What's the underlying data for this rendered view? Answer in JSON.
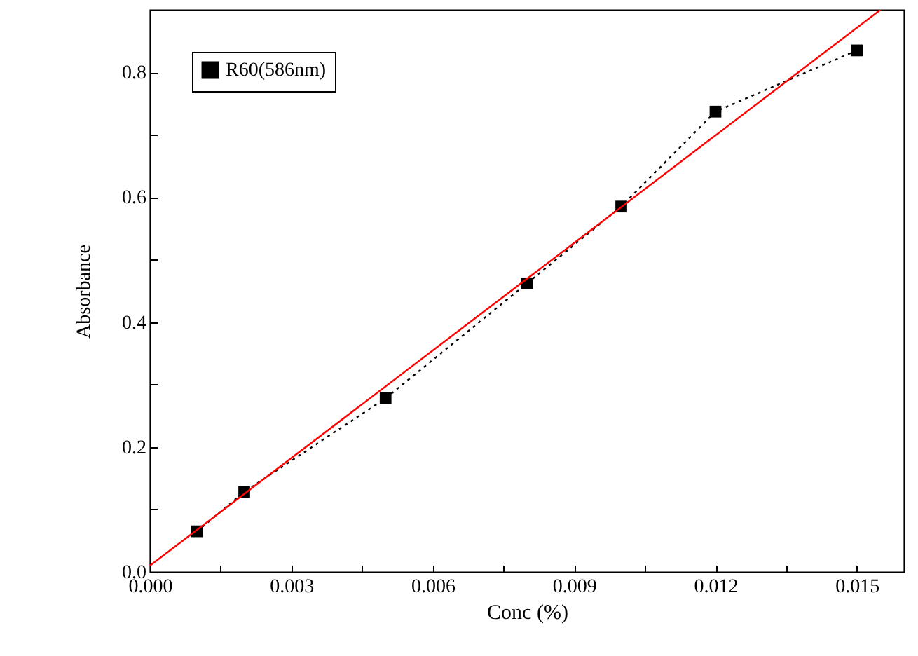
{
  "chart_data": {
    "type": "line",
    "xlabel": "Conc (%)",
    "ylabel": "Absorbance",
    "x": [
      0.001,
      0.002,
      0.005,
      0.008,
      0.01,
      0.012,
      0.015
    ],
    "series": [
      {
        "name": "R60(586nm)",
        "color": "#000000",
        "values": [
          0.065,
          0.128,
          0.278,
          0.462,
          0.585,
          0.737,
          0.835
        ],
        "marker": "square",
        "line_style": "dotted"
      },
      {
        "type": "line",
        "color": "#ff0000",
        "x": [
          0,
          0.0155
        ],
        "values": [
          0.01,
          0.9
        ],
        "marker": "none",
        "line_style": "solid"
      }
    ],
    "xlim": [
      0,
      0.016
    ],
    "ylim": [
      0,
      0.9
    ],
    "xticks": [
      {
        "value": 0,
        "label": "0.000"
      },
      {
        "value": 0.0015,
        "label": null
      },
      {
        "value": 0.003,
        "label": "0.003"
      },
      {
        "value": 0.0045,
        "label": null
      },
      {
        "value": 0.006,
        "label": "0.006"
      },
      {
        "value": 0.0075,
        "label": null
      },
      {
        "value": 0.009,
        "label": "0.009"
      },
      {
        "value": 0.0105,
        "label": null
      },
      {
        "value": 0.012,
        "label": "0.012"
      },
      {
        "value": 0.0135,
        "label": null
      },
      {
        "value": 0.015,
        "label": "0.015"
      }
    ],
    "yticks": [
      {
        "value": 0,
        "label": "0.0"
      },
      {
        "value": 0.1,
        "label": null
      },
      {
        "value": 0.2,
        "label": "0.2"
      },
      {
        "value": 0.3,
        "label": null
      },
      {
        "value": 0.4,
        "label": "0.4"
      },
      {
        "value": 0.5,
        "label": null
      },
      {
        "value": 0.6,
        "label": "0.6"
      },
      {
        "value": 0.7,
        "label": null
      },
      {
        "value": 0.8,
        "label": "0.8"
      }
    ],
    "grid": false,
    "legend": "top left"
  }
}
